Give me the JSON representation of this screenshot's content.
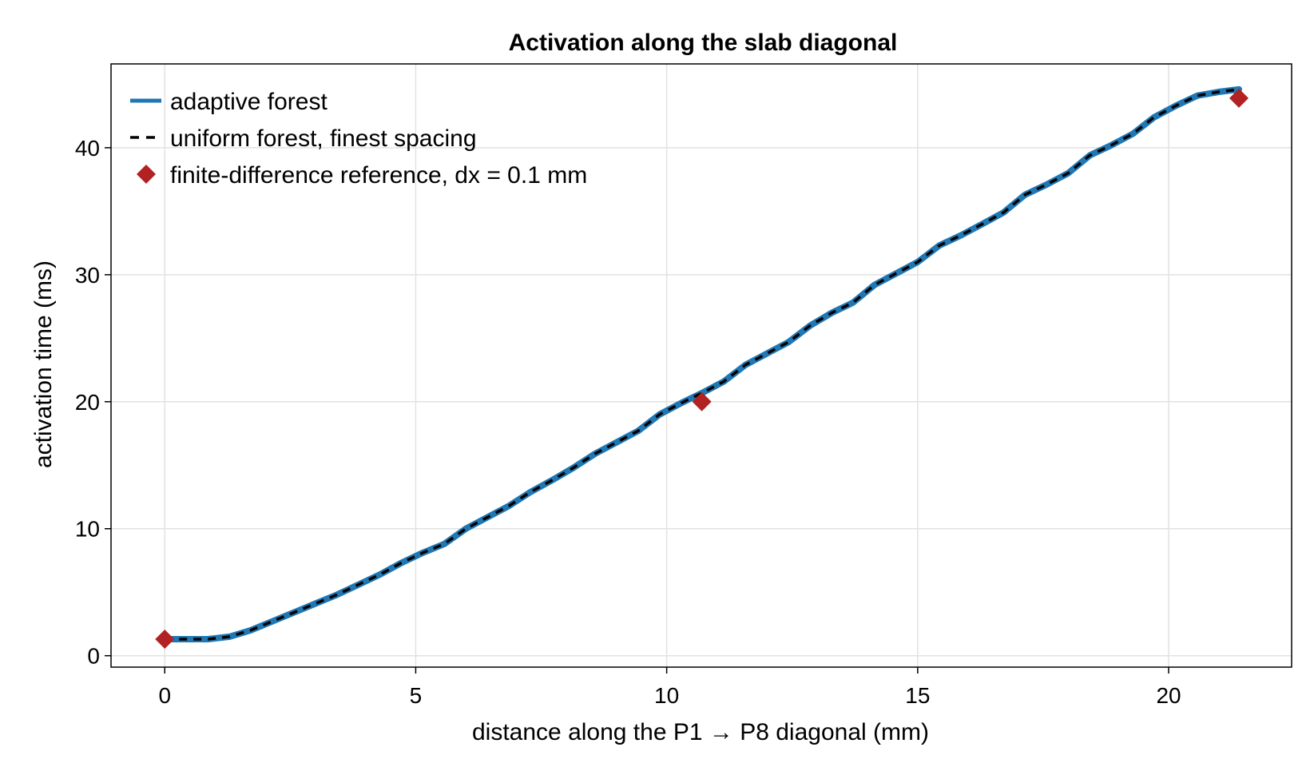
{
  "chart_data": {
    "type": "line",
    "title": "Activation along the slab diagonal",
    "xlabel": "distance along the P1 → P8 diagonal (mm)",
    "ylabel": "activation time (ms)",
    "xlim": [
      -1.07,
      22.45
    ],
    "ylim": [
      -0.9,
      46.6
    ],
    "xticks": [
      0,
      5,
      10,
      15,
      20
    ],
    "yticks": [
      0,
      10,
      20,
      30,
      40
    ],
    "grid": true,
    "legend_position": "top-left",
    "x": [
      0,
      0.43,
      0.86,
      1.29,
      1.71,
      2.14,
      2.57,
      3.0,
      3.43,
      3.86,
      4.29,
      4.71,
      5.14,
      5.57,
      6.0,
      6.43,
      6.86,
      7.29,
      7.71,
      8.14,
      8.57,
      9.0,
      9.43,
      9.86,
      10.29,
      10.71,
      11.14,
      11.57,
      12.0,
      12.43,
      12.86,
      13.29,
      13.71,
      14.14,
      14.57,
      15.0,
      15.43,
      15.86,
      16.29,
      16.71,
      17.14,
      17.57,
      18.0,
      18.43,
      18.86,
      19.29,
      19.71,
      20.14,
      20.57,
      21.0,
      21.4
    ],
    "series": [
      {
        "name": "adaptive forest",
        "color": "#1f77b4",
        "style": "solid",
        "values": [
          1.3,
          1.3,
          1.3,
          1.5,
          2.0,
          2.7,
          3.4,
          4.1,
          4.8,
          5.6,
          6.4,
          7.3,
          8.1,
          8.8,
          10.0,
          10.9,
          11.8,
          12.9,
          13.8,
          14.8,
          15.9,
          16.8,
          17.7,
          19.0,
          19.9,
          20.7,
          21.6,
          22.9,
          23.8,
          24.7,
          26.0,
          27.0,
          27.8,
          29.2,
          30.1,
          31.0,
          32.3,
          33.1,
          34.0,
          34.9,
          36.3,
          37.1,
          38.0,
          39.4,
          40.2,
          41.1,
          42.4,
          43.3,
          44.1,
          44.4,
          44.6
        ]
      },
      {
        "name": "uniform forest, finest spacing",
        "color": "#000000",
        "style": "dashed",
        "values": [
          1.3,
          1.3,
          1.3,
          1.5,
          2.0,
          2.7,
          3.4,
          4.1,
          4.8,
          5.6,
          6.4,
          7.3,
          8.1,
          8.8,
          10.0,
          10.9,
          11.8,
          12.9,
          13.8,
          14.8,
          15.9,
          16.8,
          17.7,
          19.0,
          19.9,
          20.7,
          21.6,
          22.9,
          23.8,
          24.7,
          26.0,
          27.0,
          27.8,
          29.2,
          30.1,
          31.0,
          32.3,
          33.1,
          34.0,
          34.9,
          36.3,
          37.1,
          38.0,
          39.4,
          40.2,
          41.1,
          42.4,
          43.3,
          44.1,
          44.4,
          44.6
        ]
      }
    ],
    "reference": {
      "name": "finite-difference reference, dx = 0.1 mm",
      "color": "#b22222",
      "marker": "diamond",
      "x": [
        0,
        10.7,
        21.4
      ],
      "y": [
        1.3,
        20.0,
        43.9
      ]
    }
  }
}
